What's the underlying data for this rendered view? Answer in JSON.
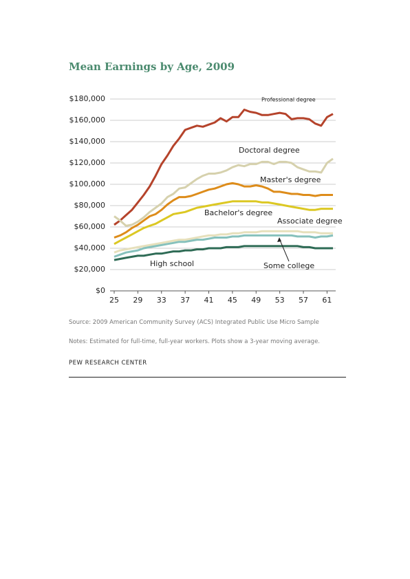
{
  "chart_data": {
    "type": "line",
    "title": "Mean Earnings by Age, 2009",
    "x": [
      25,
      26,
      27,
      28,
      29,
      30,
      31,
      32,
      33,
      34,
      35,
      36,
      37,
      38,
      39,
      40,
      41,
      42,
      43,
      44,
      45,
      46,
      47,
      48,
      49,
      50,
      51,
      52,
      53,
      54,
      55,
      56,
      57,
      58,
      59,
      60,
      61,
      62
    ],
    "xlim": [
      25,
      62
    ],
    "xticks": [
      25,
      29,
      33,
      37,
      41,
      45,
      49,
      53,
      57,
      61
    ],
    "ylim": [
      0,
      180000
    ],
    "yticks": [
      {
        "value": 0,
        "label": "$0"
      },
      {
        "value": 20000,
        "label": "$20,000"
      },
      {
        "value": 40000,
        "label": "$40,000"
      },
      {
        "value": 60000,
        "label": "$60,000"
      },
      {
        "value": 80000,
        "label": "$80,000"
      },
      {
        "value": 100000,
        "label": "$100,000"
      },
      {
        "value": 120000,
        "label": "$120,000"
      },
      {
        "value": 140000,
        "label": "$140,000"
      },
      {
        "value": 160000,
        "label": "$160,000"
      },
      {
        "value": 180000,
        "label": "$180,000"
      }
    ],
    "grid": true,
    "series": [
      {
        "name": "Professional degree",
        "color": "#b5432b",
        "values": [
          62000,
          66000,
          71000,
          76000,
          83000,
          90000,
          98000,
          108000,
          119000,
          127000,
          136000,
          143000,
          151000,
          153000,
          155000,
          154000,
          156000,
          158000,
          162000,
          159000,
          163000,
          163000,
          170000,
          168000,
          167000,
          165000,
          165000,
          166000,
          167000,
          166000,
          161000,
          162000,
          162000,
          161000,
          157000,
          155000,
          163000,
          166000
        ]
      },
      {
        "name": "Doctoral degree",
        "color": "#d6d1ad",
        "values": [
          70000,
          66000,
          61000,
          62000,
          65000,
          69000,
          74000,
          78000,
          82000,
          88000,
          91000,
          96000,
          97000,
          101000,
          105000,
          108000,
          110000,
          110000,
          111000,
          113000,
          116000,
          118000,
          117000,
          119000,
          119000,
          121000,
          121000,
          119000,
          121000,
          121000,
          120000,
          116000,
          114000,
          112000,
          112000,
          111000,
          120000,
          124000
        ]
      },
      {
        "name": "Master's degree",
        "color": "#dd8c1a",
        "values": [
          50000,
          52000,
          55000,
          59000,
          62000,
          66000,
          70000,
          72000,
          76000,
          81000,
          85000,
          88000,
          88000,
          89000,
          91000,
          93000,
          95000,
          96000,
          98000,
          100000,
          101000,
          100000,
          98000,
          98000,
          99000,
          98000,
          96000,
          93000,
          93000,
          92000,
          91000,
          91000,
          90000,
          90000,
          89000,
          90000,
          90000,
          90000
        ]
      },
      {
        "name": "Bachelor's degree",
        "color": "#dcc823",
        "values": [
          44000,
          47000,
          50000,
          53000,
          56000,
          59000,
          61000,
          63000,
          66000,
          69000,
          72000,
          73000,
          74000,
          76000,
          78000,
          79000,
          80000,
          81000,
          82000,
          83000,
          84000,
          84000,
          84000,
          84000,
          84000,
          83000,
          83000,
          82000,
          81000,
          80000,
          79000,
          78000,
          77000,
          76000,
          76000,
          77000,
          77000,
          77000
        ]
      },
      {
        "name": "Associate degree",
        "color": "#e6e0bc",
        "values": [
          36000,
          38000,
          39000,
          40000,
          41000,
          42000,
          43000,
          44000,
          45000,
          46000,
          47000,
          48000,
          48000,
          49000,
          50000,
          51000,
          52000,
          52000,
          53000,
          53000,
          54000,
          54000,
          55000,
          55000,
          55000,
          56000,
          56000,
          56000,
          56000,
          56000,
          56000,
          56000,
          55000,
          55000,
          55000,
          54000,
          54000,
          54000
        ]
      },
      {
        "name": "Some college",
        "color": "#86c1bc",
        "values": [
          32000,
          34000,
          36000,
          37000,
          38000,
          40000,
          41000,
          42000,
          43000,
          44000,
          45000,
          46000,
          46000,
          47000,
          48000,
          48000,
          49000,
          50000,
          50000,
          50000,
          51000,
          51000,
          52000,
          52000,
          52000,
          52000,
          52000,
          52000,
          52000,
          52000,
          52000,
          51000,
          51000,
          51000,
          50000,
          51000,
          51000,
          52000
        ]
      },
      {
        "name": "High school",
        "color": "#2e6b55",
        "values": [
          29000,
          30000,
          31000,
          32000,
          33000,
          33000,
          34000,
          35000,
          35000,
          36000,
          37000,
          37000,
          38000,
          38000,
          39000,
          39000,
          40000,
          40000,
          40000,
          41000,
          41000,
          41000,
          42000,
          42000,
          42000,
          42000,
          42000,
          42000,
          42000,
          42000,
          42000,
          42000,
          41000,
          41000,
          40000,
          40000,
          40000,
          40000
        ]
      }
    ]
  },
  "source": "Source: 2009 American Community Survey (ACS) Integrated Public Use Micro Sample",
  "notes": "Notes: Estimated for full-time, full-year workers. Plots show a 3-year moving average.",
  "organization": "PEW RESEARCH CENTER"
}
